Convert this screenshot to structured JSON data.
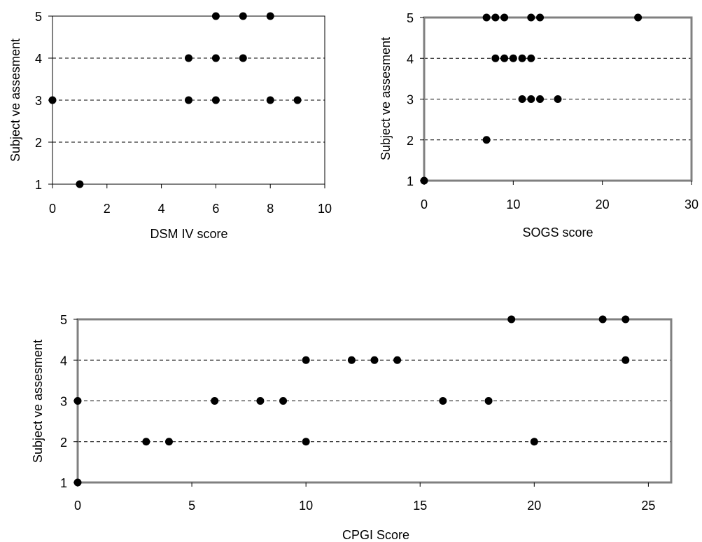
{
  "chart_data": [
    {
      "type": "scatter",
      "xlabel": "DSM IV score",
      "ylabel": "Subject ve assesment",
      "xlim": [
        0,
        10
      ],
      "ylim": [
        1,
        5
      ],
      "xticks": [
        0,
        2,
        4,
        6,
        8,
        10
      ],
      "yticks": [
        1,
        2,
        3,
        4,
        5
      ],
      "grid": "horizontal dashed",
      "points": [
        {
          "x": 0,
          "y": 3
        },
        {
          "x": 1,
          "y": 1
        },
        {
          "x": 5,
          "y": 4
        },
        {
          "x": 5,
          "y": 3
        },
        {
          "x": 6,
          "y": 5
        },
        {
          "x": 6,
          "y": 4
        },
        {
          "x": 6,
          "y": 3
        },
        {
          "x": 7,
          "y": 5
        },
        {
          "x": 7,
          "y": 4
        },
        {
          "x": 8,
          "y": 5
        },
        {
          "x": 8,
          "y": 3
        },
        {
          "x": 9,
          "y": 3
        }
      ]
    },
    {
      "type": "scatter",
      "xlabel": "SOGS score",
      "ylabel": "Subject ve assesment",
      "xlim": [
        0,
        30
      ],
      "ylim": [
        1,
        5
      ],
      "xticks": [
        0,
        10,
        20,
        30
      ],
      "yticks": [
        1,
        2,
        3,
        4,
        5
      ],
      "grid": "horizontal dashed",
      "points": [
        {
          "x": 0,
          "y": 1
        },
        {
          "x": 7,
          "y": 2
        },
        {
          "x": 7,
          "y": 5
        },
        {
          "x": 8,
          "y": 5
        },
        {
          "x": 9,
          "y": 5
        },
        {
          "x": 12,
          "y": 5
        },
        {
          "x": 13,
          "y": 5
        },
        {
          "x": 24,
          "y": 5
        },
        {
          "x": 8,
          "y": 4
        },
        {
          "x": 9,
          "y": 4
        },
        {
          "x": 10,
          "y": 4
        },
        {
          "x": 11,
          "y": 4
        },
        {
          "x": 12,
          "y": 4
        },
        {
          "x": 11,
          "y": 3
        },
        {
          "x": 12,
          "y": 3
        },
        {
          "x": 13,
          "y": 3
        },
        {
          "x": 15,
          "y": 3
        }
      ]
    },
    {
      "type": "scatter",
      "xlabel": "CPGI Score",
      "ylabel": "Subject ve assesment",
      "xlim": [
        0,
        26
      ],
      "ylim": [
        1,
        5
      ],
      "xticks": [
        0,
        5,
        10,
        15,
        20,
        25
      ],
      "yticks": [
        1,
        2,
        3,
        4,
        5
      ],
      "grid": "horizontal dashed",
      "points": [
        {
          "x": 0,
          "y": 1
        },
        {
          "x": 0,
          "y": 3
        },
        {
          "x": 3,
          "y": 2
        },
        {
          "x": 4,
          "y": 2
        },
        {
          "x": 6,
          "y": 3
        },
        {
          "x": 8,
          "y": 3
        },
        {
          "x": 9,
          "y": 3
        },
        {
          "x": 10,
          "y": 4
        },
        {
          "x": 10,
          "y": 2
        },
        {
          "x": 12,
          "y": 4
        },
        {
          "x": 13,
          "y": 4
        },
        {
          "x": 14,
          "y": 4
        },
        {
          "x": 16,
          "y": 3
        },
        {
          "x": 18,
          "y": 3
        },
        {
          "x": 19,
          "y": 5
        },
        {
          "x": 20,
          "y": 2
        },
        {
          "x": 23,
          "y": 5
        },
        {
          "x": 24,
          "y": 5
        },
        {
          "x": 24,
          "y": 4
        }
      ]
    }
  ]
}
